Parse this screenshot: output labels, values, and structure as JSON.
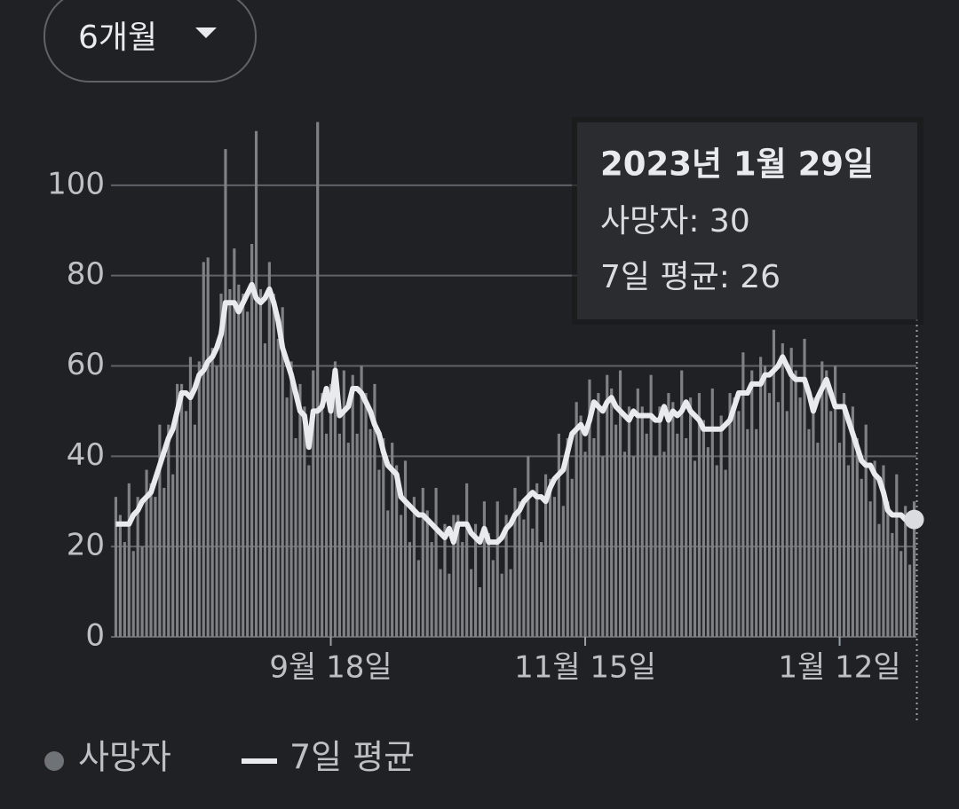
{
  "period_selector": "6개월",
  "chart_data": {
    "type": "bar",
    "categories": [
      null,
      null,
      null,
      null,
      null,
      null,
      null,
      null,
      null,
      null,
      null,
      null,
      null,
      null,
      null,
      null,
      null,
      null,
      null,
      null,
      null,
      null,
      null,
      null,
      null,
      null,
      null,
      null,
      null,
      null,
      null,
      null,
      null,
      null,
      null,
      null,
      null,
      null,
      null,
      null,
      null,
      null,
      null,
      null,
      null,
      null,
      null,
      null,
      null,
      "9월 18일",
      null,
      null,
      null,
      null,
      null,
      null,
      null,
      null,
      null,
      null,
      null,
      null,
      null,
      null,
      null,
      null,
      null,
      null,
      null,
      null,
      null,
      null,
      null,
      null,
      null,
      null,
      null,
      null,
      null,
      null,
      null,
      null,
      null,
      null,
      null,
      null,
      null,
      null,
      null,
      null,
      null,
      null,
      null,
      null,
      null,
      null,
      null,
      null,
      null,
      null,
      null,
      null,
      null,
      null,
      null,
      null,
      null,
      "11월 15일",
      null,
      null,
      null,
      null,
      null,
      null,
      null,
      null,
      null,
      null,
      null,
      null,
      null,
      null,
      null,
      null,
      null,
      null,
      null,
      null,
      null,
      null,
      null,
      null,
      null,
      null,
      null,
      null,
      null,
      null,
      null,
      null,
      null,
      null,
      null,
      null,
      null,
      null,
      null,
      null,
      null,
      null,
      null,
      null,
      null,
      null,
      null,
      null,
      null,
      null,
      null,
      null,
      null,
      null,
      null,
      null,
      null,
      "1월 12일",
      null,
      null,
      null,
      null,
      null,
      null,
      null,
      null,
      null,
      null,
      null,
      null,
      null,
      null,
      null,
      null,
      null
    ],
    "series": [
      {
        "name": "사망자",
        "type": "bar",
        "color": "#7f8184",
        "values": [
          31,
          27,
          21,
          34,
          19,
          31,
          20,
          37,
          34,
          31,
          47,
          33,
          47,
          36,
          56,
          56,
          50,
          62,
          47,
          61,
          83,
          84,
          64,
          60,
          76,
          108,
          77,
          86,
          78,
          76,
          72,
          87,
          112,
          77,
          65,
          83,
          76,
          66,
          73,
          53,
          61,
          44,
          56,
          51,
          38,
          59,
          114,
          54,
          45,
          56,
          61,
          45,
          59,
          43,
          58,
          45,
          60,
          54,
          46,
          56,
          37,
          44,
          28,
          43,
          38,
          27,
          39,
          21,
          31,
          17,
          33,
          28,
          21,
          33,
          15,
          25,
          14,
          27,
          27,
          21,
          34,
          15,
          25,
          11,
          30,
          23,
          17,
          30,
          14,
          27,
          15,
          33,
          30,
          26,
          40,
          24,
          34,
          21,
          36,
          35,
          31,
          45,
          29,
          44,
          35,
          52,
          49,
          41,
          57,
          44,
          54,
          40,
          58,
          55,
          47,
          59,
          41,
          51,
          40,
          55,
          51,
          45,
          58,
          40,
          51,
          41,
          54,
          52,
          45,
          59,
          44,
          53,
          39,
          54,
          48,
          42,
          55,
          38,
          49,
          37,
          54,
          53,
          50,
          63,
          46,
          59,
          46,
          62,
          60,
          54,
          68,
          52,
          65,
          50,
          64,
          59,
          53,
          66,
          46,
          53,
          43,
          61,
          59,
          50,
          60,
          43,
          54,
          38,
          51,
          44,
          35,
          47,
          30,
          39,
          25,
          38,
          30,
          23,
          36,
          19,
          29,
          16,
          30
        ]
      },
      {
        "name": "7일 평균",
        "type": "line",
        "color": "#e8eaed",
        "values": [
          25,
          25,
          25,
          25,
          27,
          28,
          30,
          31,
          32,
          35,
          38,
          41,
          44,
          46,
          50,
          54,
          54,
          53,
          55,
          58,
          59,
          61,
          62,
          64,
          67,
          74,
          74,
          74,
          72,
          74,
          76,
          78,
          75,
          74,
          75,
          77,
          74,
          70,
          64,
          61,
          58,
          54,
          50,
          49,
          42,
          50,
          50,
          51,
          55,
          50,
          59,
          49,
          50,
          51,
          55,
          55,
          54,
          52,
          50,
          47,
          45,
          41,
          38,
          37,
          36,
          31,
          30,
          29,
          28,
          27,
          27,
          26,
          25,
          24,
          23,
          22,
          24,
          21,
          25,
          25,
          25,
          23,
          22,
          21,
          24,
          21,
          21,
          21,
          22,
          24,
          25,
          27,
          28,
          30,
          31,
          32,
          31,
          31,
          30,
          33,
          35,
          36,
          37,
          41,
          45,
          46,
          47,
          45,
          48,
          52,
          51,
          50,
          52,
          53,
          51,
          50,
          49,
          48,
          50,
          49,
          49,
          49,
          49,
          48,
          48,
          51,
          48,
          50,
          49,
          50,
          52,
          50,
          49,
          48,
          46,
          46,
          46,
          46,
          46,
          47,
          48,
          51,
          54,
          54,
          54,
          56,
          56,
          56,
          58,
          58,
          59,
          60,
          62,
          60,
          58,
          57,
          57,
          57,
          54,
          50,
          53,
          55,
          57,
          54,
          51,
          51,
          51,
          48,
          45,
          42,
          39,
          38,
          38,
          36,
          35,
          32,
          28,
          27,
          27,
          27,
          26,
          26,
          26
        ]
      }
    ],
    "ylim": [
      0,
      120
    ],
    "yticks": [
      0,
      20,
      40,
      60,
      80,
      100
    ],
    "grid": true,
    "legend": "bottom-left",
    "tooltip": {
      "title": "2023년 1월 29일",
      "lines": [
        "사망자: 30",
        "7일 평균: 26"
      ]
    }
  }
}
